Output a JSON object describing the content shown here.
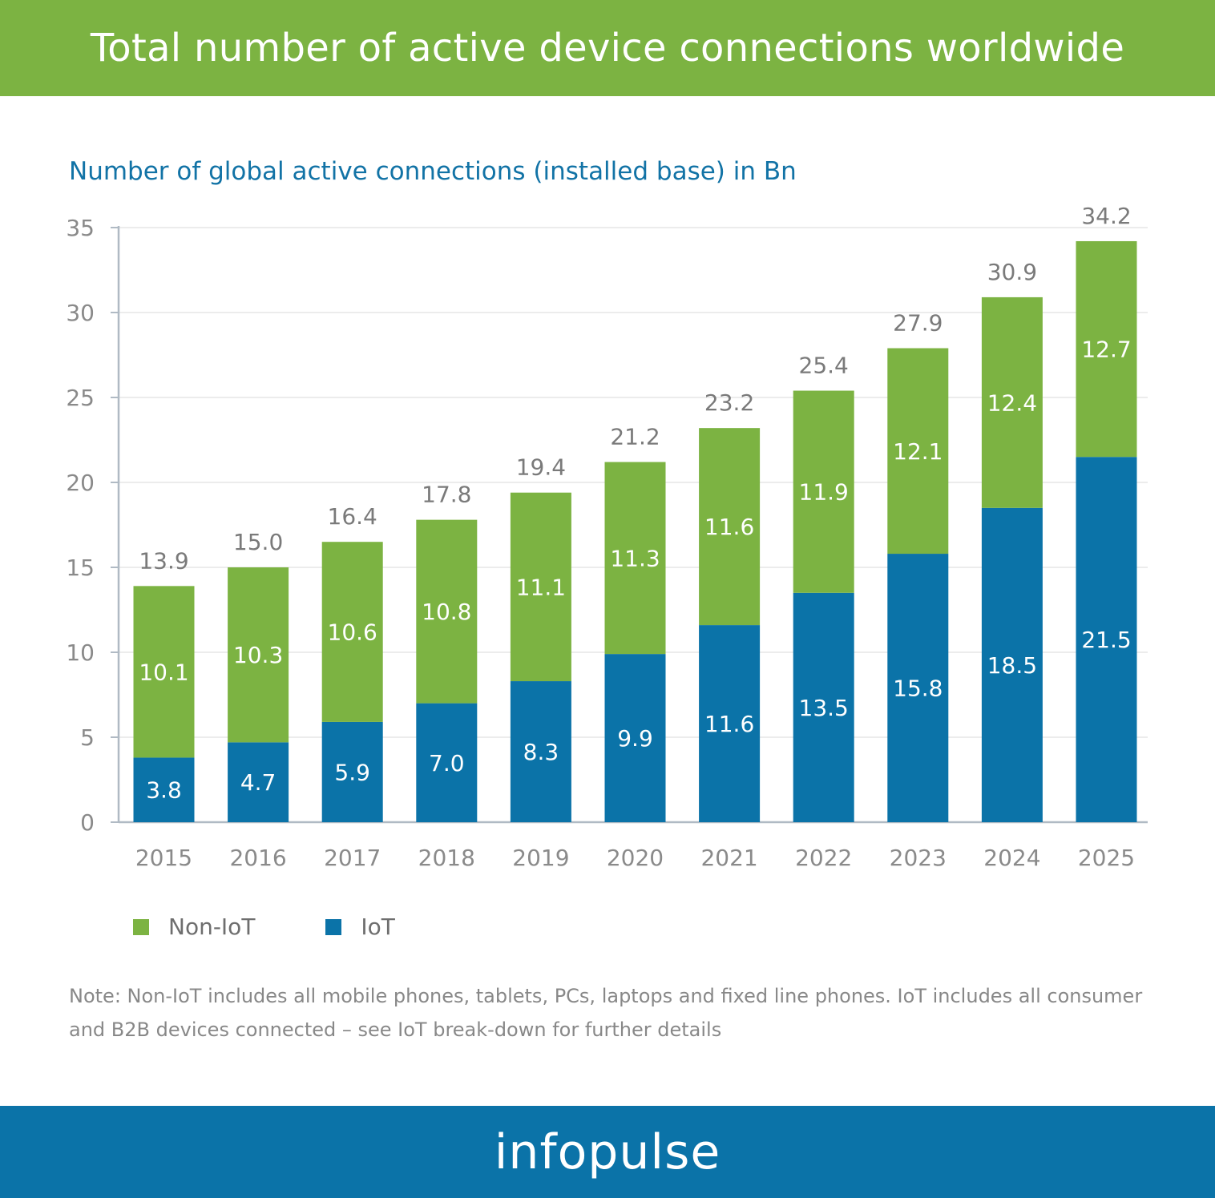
{
  "header": {
    "title": "Total number of active device connections worldwide"
  },
  "note": "Note: Non-IoT includes all mobile phones, tablets, PCs, laptops and fixed line phones. IoT includes all consumer and B2B devices connected – see IoT break-down for further details",
  "footer": {
    "brand": "infopulse"
  },
  "colors": {
    "non_iot": "#7cb342",
    "iot": "#0b73a8",
    "header_bg": "#7cb342",
    "footer_bg": "#0b73a8",
    "subtitle": "#1273a6"
  },
  "chart_data": {
    "type": "bar",
    "stacked": true,
    "title": "Number of global active connections (installed base) in Bn",
    "xlabel": "",
    "ylabel": "",
    "ylim": [
      0,
      35
    ],
    "yticks": [
      0,
      5,
      10,
      15,
      20,
      25,
      30,
      35
    ],
    "grid": true,
    "legend_position": "bottom-left",
    "categories": [
      "2015",
      "2016",
      "2017",
      "2018",
      "2019",
      "2020",
      "2021",
      "2022",
      "2023",
      "2024",
      "2025"
    ],
    "series": [
      {
        "name": "IoT",
        "color": "#0b73a8",
        "values": [
          3.8,
          4.7,
          5.9,
          7.0,
          8.3,
          9.9,
          11.6,
          13.5,
          15.8,
          18.5,
          21.5
        ]
      },
      {
        "name": "Non-IoT",
        "color": "#7cb342",
        "values": [
          10.1,
          10.3,
          10.6,
          10.8,
          11.1,
          11.3,
          11.6,
          11.9,
          12.1,
          12.4,
          12.7
        ]
      }
    ],
    "totals": [
      "13.9",
      "15.0",
      "16.4",
      "17.8",
      "19.4",
      "21.2",
      "23.2",
      "25.4",
      "27.9",
      "30.9",
      "34.2"
    ],
    "series_labels": [
      [
        "3.8",
        "4.7",
        "5.9",
        "7.0",
        "8.3",
        "9.9",
        "11.6",
        "13.5",
        "15.8",
        "18.5",
        "21.5"
      ],
      [
        "10.1",
        "10.3",
        "10.6",
        "10.8",
        "11.1",
        "11.3",
        "11.6",
        "11.9",
        "12.1",
        "12.4",
        "12.7"
      ]
    ]
  }
}
